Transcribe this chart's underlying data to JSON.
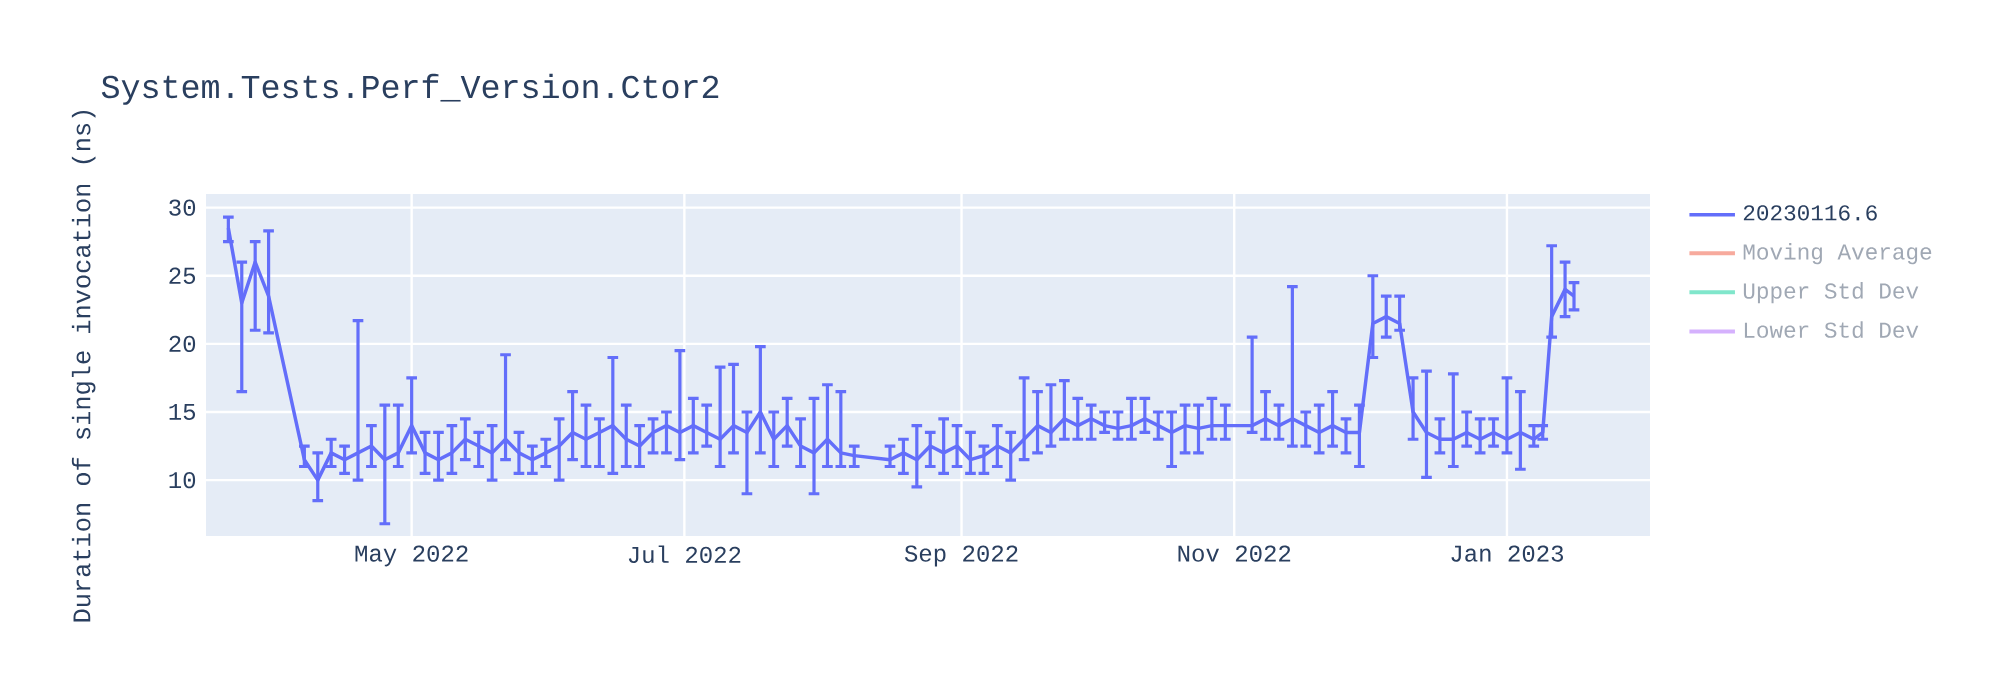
{
  "chart_data": {
    "type": "line",
    "title": "System.Tests.Perf_Version.Ctor2",
    "ylabel": "Duration of single invocation (ns)",
    "xlim": [
      "2022-03-16",
      "2023-02-02"
    ],
    "ylim": [
      5.9,
      31
    ],
    "xticks": [
      {
        "value": "2022-05-01",
        "label": "May 2022"
      },
      {
        "value": "2022-07-01",
        "label": "Jul 2022"
      },
      {
        "value": "2022-09-01",
        "label": "Sep 2022"
      },
      {
        "value": "2022-11-01",
        "label": "Nov 2022"
      },
      {
        "value": "2023-01-01",
        "label": "Jan 2023"
      }
    ],
    "yticks": [
      10,
      15,
      20,
      25,
      30
    ],
    "grid": true,
    "legend": "right",
    "marker": "none",
    "line_style": "solid",
    "x": [
      "2022-03-21",
      "2022-03-24",
      "2022-03-27",
      "2022-03-30",
      "2022-04-07",
      "2022-04-10",
      "2022-04-13",
      "2022-04-16",
      "2022-04-19",
      "2022-04-22",
      "2022-04-25",
      "2022-04-28",
      "2022-05-01",
      "2022-05-04",
      "2022-05-07",
      "2022-05-10",
      "2022-05-13",
      "2022-05-16",
      "2022-05-19",
      "2022-05-22",
      "2022-05-25",
      "2022-05-28",
      "2022-05-31",
      "2022-06-03",
      "2022-06-06",
      "2022-06-09",
      "2022-06-12",
      "2022-06-15",
      "2022-06-18",
      "2022-06-21",
      "2022-06-24",
      "2022-06-27",
      "2022-06-30",
      "2022-07-03",
      "2022-07-06",
      "2022-07-09",
      "2022-07-12",
      "2022-07-15",
      "2022-07-18",
      "2022-07-21",
      "2022-07-24",
      "2022-07-27",
      "2022-07-30",
      "2022-08-02",
      "2022-08-05",
      "2022-08-08",
      "2022-08-16",
      "2022-08-19",
      "2022-08-22",
      "2022-08-25",
      "2022-08-28",
      "2022-08-31",
      "2022-09-03",
      "2022-09-06",
      "2022-09-09",
      "2022-09-12",
      "2022-09-15",
      "2022-09-18",
      "2022-09-21",
      "2022-09-24",
      "2022-09-27",
      "2022-09-30",
      "2022-10-03",
      "2022-10-06",
      "2022-10-09",
      "2022-10-12",
      "2022-10-15",
      "2022-10-18",
      "2022-10-21",
      "2022-10-24",
      "2022-10-27",
      "2022-10-30",
      "2022-11-05",
      "2022-11-08",
      "2022-11-11",
      "2022-11-14",
      "2022-11-17",
      "2022-11-20",
      "2022-11-23",
      "2022-11-26",
      "2022-11-29",
      "2022-12-02",
      "2022-12-05",
      "2022-12-08",
      "2022-12-11",
      "2022-12-14",
      "2022-12-17",
      "2022-12-20",
      "2022-12-23",
      "2022-12-26",
      "2022-12-29",
      "2023-01-01",
      "2023-01-04",
      "2023-01-07",
      "2023-01-09",
      "2023-01-11",
      "2023-01-14",
      "2023-01-16"
    ],
    "series": [
      {
        "name": "20230116.6",
        "color": "#636efa",
        "values": [
          28.5,
          23,
          26,
          23.5,
          11.5,
          10,
          12,
          11.5,
          12,
          12.5,
          11.5,
          12,
          14,
          12,
          11.5,
          12,
          13,
          12.5,
          12,
          13,
          12,
          11.5,
          12,
          12.5,
          13.5,
          13,
          13.5,
          14,
          13,
          12.5,
          13.5,
          14,
          13.5,
          14,
          13.5,
          13,
          14,
          13.5,
          15,
          13,
          14,
          12.5,
          12,
          13,
          12,
          11.8,
          11.5,
          12,
          11.5,
          12.5,
          12,
          12.5,
          11.5,
          11.8,
          12.5,
          12,
          13,
          14,
          13.5,
          14.5,
          14,
          14.5,
          14,
          13.8,
          14,
          14.5,
          14,
          13.5,
          14,
          13.8,
          14,
          14,
          14,
          14.5,
          14,
          14.5,
          14,
          13.5,
          14,
          13.5,
          13.5,
          21.5,
          22,
          21.5,
          15,
          13.5,
          13,
          13,
          13.5,
          13,
          13.5,
          13,
          13.5,
          13,
          13.5,
          22,
          24,
          23.5
        ],
        "errors": [
          [
            27.5,
            29.3
          ],
          [
            16.5,
            26
          ],
          [
            21,
            27.5
          ],
          [
            20.8,
            28.3
          ],
          [
            11,
            12.5
          ],
          [
            8.5,
            12
          ],
          [
            11,
            13
          ],
          [
            10.5,
            12.5
          ],
          [
            10,
            21.7
          ],
          [
            11,
            14
          ],
          [
            6.8,
            15.5
          ],
          [
            11,
            15.5
          ],
          [
            12,
            17.5
          ],
          [
            10.5,
            13.5
          ],
          [
            10,
            13.5
          ],
          [
            10.5,
            14
          ],
          [
            11.5,
            14.5
          ],
          [
            11,
            13.5
          ],
          [
            10,
            14
          ],
          [
            11.5,
            19.2
          ],
          [
            10.5,
            13.5
          ],
          [
            10.5,
            12.5
          ],
          [
            11,
            13
          ],
          [
            10,
            14.5
          ],
          [
            11.5,
            16.5
          ],
          [
            11,
            15.5
          ],
          [
            11,
            14.5
          ],
          [
            10.5,
            19
          ],
          [
            11,
            15.5
          ],
          [
            11,
            14
          ],
          [
            12,
            14.5
          ],
          [
            12,
            15
          ],
          [
            11.5,
            19.5
          ],
          [
            12,
            16
          ],
          [
            12.5,
            15.5
          ],
          [
            11,
            18.3
          ],
          [
            12,
            18.5
          ],
          [
            9,
            15
          ],
          [
            12,
            19.8
          ],
          [
            11,
            15
          ],
          [
            12.5,
            16
          ],
          [
            11,
            14.5
          ],
          [
            9,
            16
          ],
          [
            11,
            17
          ],
          [
            11,
            16.5
          ],
          [
            11,
            12.5
          ],
          [
            11,
            12.5
          ],
          [
            10.5,
            13
          ],
          [
            9.5,
            14
          ],
          [
            11,
            13.5
          ],
          [
            10.5,
            14.5
          ],
          [
            11,
            14
          ],
          [
            10.5,
            13.5
          ],
          [
            10.5,
            12.5
          ],
          [
            11,
            14
          ],
          [
            10,
            13.5
          ],
          [
            11.5,
            17.5
          ],
          [
            12,
            16.5
          ],
          [
            12.5,
            17
          ],
          [
            13,
            17.3
          ],
          [
            13,
            16
          ],
          [
            13,
            15.5
          ],
          [
            13.5,
            15
          ],
          [
            13,
            15
          ],
          [
            13,
            16
          ],
          [
            13.5,
            16
          ],
          [
            13,
            15
          ],
          [
            11,
            15
          ],
          [
            12,
            15.5
          ],
          [
            12,
            15.5
          ],
          [
            13,
            16
          ],
          [
            13,
            15.5
          ],
          [
            13.5,
            20.5
          ],
          [
            13,
            16.5
          ],
          [
            13,
            15.5
          ],
          [
            12.5,
            24.2
          ],
          [
            12.5,
            15
          ],
          [
            12,
            15.5
          ],
          [
            12.5,
            16.5
          ],
          [
            12,
            14.5
          ],
          [
            11,
            15.5
          ],
          [
            19,
            25
          ],
          [
            20.5,
            23.5
          ],
          [
            21,
            23.5
          ],
          [
            13,
            17.5
          ],
          [
            10.2,
            18
          ],
          [
            12,
            14.5
          ],
          [
            11,
            17.8
          ],
          [
            12.5,
            15
          ],
          [
            12,
            14.5
          ],
          [
            12.5,
            14.5
          ],
          [
            12,
            17.5
          ],
          [
            10.8,
            16.5
          ],
          [
            12.5,
            14
          ],
          [
            13,
            14
          ],
          [
            20.5,
            27.2
          ],
          [
            22,
            26
          ],
          [
            22.5,
            24.5
          ]
        ]
      },
      {
        "name": "Moving Average",
        "color": "#f7aa9d",
        "values": [
          null,
          null,
          null,
          null,
          null,
          null,
          null,
          null,
          null,
          null,
          null,
          null,
          null,
          null,
          null,
          null,
          null,
          null,
          null,
          null,
          null,
          null,
          null,
          null,
          null,
          null,
          null,
          null,
          null,
          null,
          null,
          null,
          null,
          null,
          null,
          null,
          null,
          null,
          null,
          null,
          null,
          null,
          null,
          null,
          null,
          null,
          null,
          null,
          null,
          null,
          null,
          null,
          null,
          null,
          null,
          null,
          null,
          null,
          null,
          null,
          null,
          null,
          null,
          null,
          null,
          null,
          null,
          null,
          null,
          null,
          null,
          null,
          null,
          null,
          null,
          null,
          null,
          null,
          null,
          null,
          null,
          null,
          null,
          null,
          null,
          null,
          null,
          null,
          null,
          null,
          null,
          null,
          null,
          null,
          null,
          null,
          null,
          null
        ]
      },
      {
        "name": "Upper Std Dev",
        "color": "#80e6cb",
        "values": [
          null,
          null,
          null,
          null,
          null,
          null,
          null,
          null,
          null,
          null,
          null,
          null,
          null,
          null,
          null,
          null,
          null,
          null,
          null,
          null,
          null,
          null,
          null,
          null,
          null,
          null,
          null,
          null,
          null,
          null,
          null,
          null,
          null,
          null,
          null,
          null,
          null,
          null,
          null,
          null,
          null,
          null,
          null,
          null,
          null,
          null,
          null,
          null,
          null,
          null,
          null,
          null,
          null,
          null,
          null,
          null,
          null,
          null,
          null,
          null,
          null,
          null,
          null,
          null,
          null,
          null,
          null,
          null,
          null,
          null,
          null,
          null,
          null,
          null,
          null,
          null,
          null,
          null,
          null,
          null,
          null,
          null,
          null,
          null,
          null,
          null,
          null,
          null,
          null,
          null,
          null,
          null,
          null,
          null,
          null,
          null,
          null,
          null
        ]
      },
      {
        "name": "Lower Std Dev",
        "color": "#d5b1fd",
        "values": [
          null,
          null,
          null,
          null,
          null,
          null,
          null,
          null,
          null,
          null,
          null,
          null,
          null,
          null,
          null,
          null,
          null,
          null,
          null,
          null,
          null,
          null,
          null,
          null,
          null,
          null,
          null,
          null,
          null,
          null,
          null,
          null,
          null,
          null,
          null,
          null,
          null,
          null,
          null,
          null,
          null,
          null,
          null,
          null,
          null,
          null,
          null,
          null,
          null,
          null,
          null,
          null,
          null,
          null,
          null,
          null,
          null,
          null,
          null,
          null,
          null,
          null,
          null,
          null,
          null,
          null,
          null,
          null,
          null,
          null,
          null,
          null,
          null,
          null,
          null,
          null,
          null,
          null,
          null,
          null,
          null,
          null,
          null,
          null,
          null,
          null,
          null,
          null,
          null,
          null,
          null,
          null,
          null,
          null,
          null,
          null,
          null,
          null
        ]
      }
    ]
  }
}
